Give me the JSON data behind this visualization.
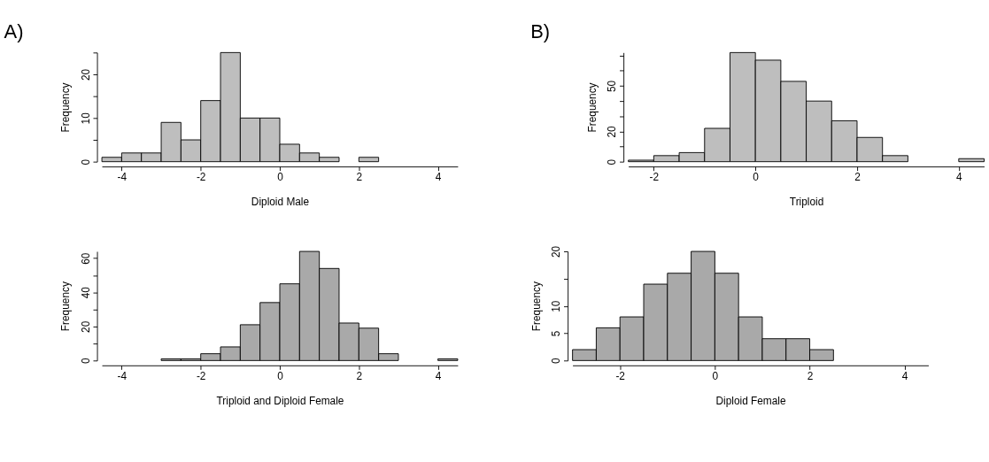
{
  "chart_data": [
    {
      "type": "histogram",
      "title": "A)",
      "xlabel": "Diploid Male",
      "ylabel": "Frequency",
      "color": "#bebebe",
      "bins": [
        -4.5,
        -4,
        -3.5,
        -3,
        -2.5,
        -2,
        -1.5,
        -1,
        -0.5,
        0,
        0.5,
        1,
        1.5,
        2,
        2.5
      ],
      "values": [
        1,
        2,
        2,
        9,
        5,
        14,
        25,
        10,
        10,
        4,
        2,
        1,
        0,
        1
      ],
      "xlim": [
        -4.5,
        4.5
      ],
      "xticks": [
        -4,
        -2,
        0,
        2,
        4
      ],
      "ylim": [
        0,
        25
      ],
      "yticks": [
        0,
        {
          "value": 5,
          "label": null
        },
        10,
        {
          "value": 15,
          "label": null
        },
        20,
        {
          "value": 25,
          "label": null
        }
      ],
      "grid": false
    },
    {
      "type": "histogram",
      "title": "B)",
      "xlabel": "Triploid",
      "ylabel": "Frequency",
      "color": "#bebebe",
      "bins": [
        -2.5,
        -2,
        -1.5,
        -1,
        -0.5,
        0,
        0.5,
        1,
        1.5,
        2,
        2.5,
        3,
        3.5,
        4,
        4.5
      ],
      "values": [
        1,
        4,
        6,
        22,
        72,
        67,
        53,
        40,
        27,
        16,
        4,
        0,
        0,
        2
      ],
      "xlim": [
        -2.5,
        4.5
      ],
      "xticks": [
        -2,
        0,
        2,
        4
      ],
      "ylim": [
        0,
        72
      ],
      "yticks": [
        0,
        {
          "value": 10,
          "label": null
        },
        20,
        {
          "value": 30,
          "label": null
        },
        {
          "value": 40,
          "label": null
        },
        50,
        {
          "value": 60,
          "label": null
        },
        {
          "value": 70,
          "label": null
        }
      ],
      "grid": false
    },
    {
      "type": "histogram",
      "xlabel": "Triploid and Diploid Female",
      "ylabel": "Frequency",
      "color": "#a9a9a9",
      "bins": [
        -3,
        -2.5,
        -2,
        -1.5,
        -1,
        -0.5,
        0,
        0.5,
        1,
        1.5,
        2,
        2.5,
        3,
        3.5,
        4,
        4.5
      ],
      "values": [
        1,
        1,
        4,
        8,
        21,
        34,
        45,
        64,
        54,
        22,
        19,
        4,
        0,
        0,
        1
      ],
      "xlim": [
        -4.5,
        4.5
      ],
      "xticks": [
        -4,
        -2,
        0,
        2,
        4
      ],
      "ylim": [
        0,
        64
      ],
      "yticks": [
        0,
        {
          "value": 10,
          "label": null
        },
        20,
        {
          "value": 30,
          "label": null
        },
        40,
        {
          "value": 50,
          "label": null
        },
        60
      ],
      "grid": false
    },
    {
      "type": "histogram",
      "xlabel": "Diploid Female",
      "ylabel": "Frequency",
      "color": "#a9a9a9",
      "bins": [
        -3,
        -2.5,
        -2,
        -1.5,
        -1,
        -0.5,
        0,
        0.5,
        1,
        1.5,
        2,
        2.5
      ],
      "values": [
        2,
        6,
        8,
        14,
        16,
        20,
        16,
        8,
        4,
        4,
        2
      ],
      "xlim": [
        -3,
        4.5
      ],
      "xticks": [
        -2,
        0,
        2,
        4
      ],
      "ylim": [
        0,
        20
      ],
      "yticks": [
        0,
        5,
        10,
        {
          "value": 15,
          "label": null
        },
        20
      ],
      "grid": false
    }
  ]
}
